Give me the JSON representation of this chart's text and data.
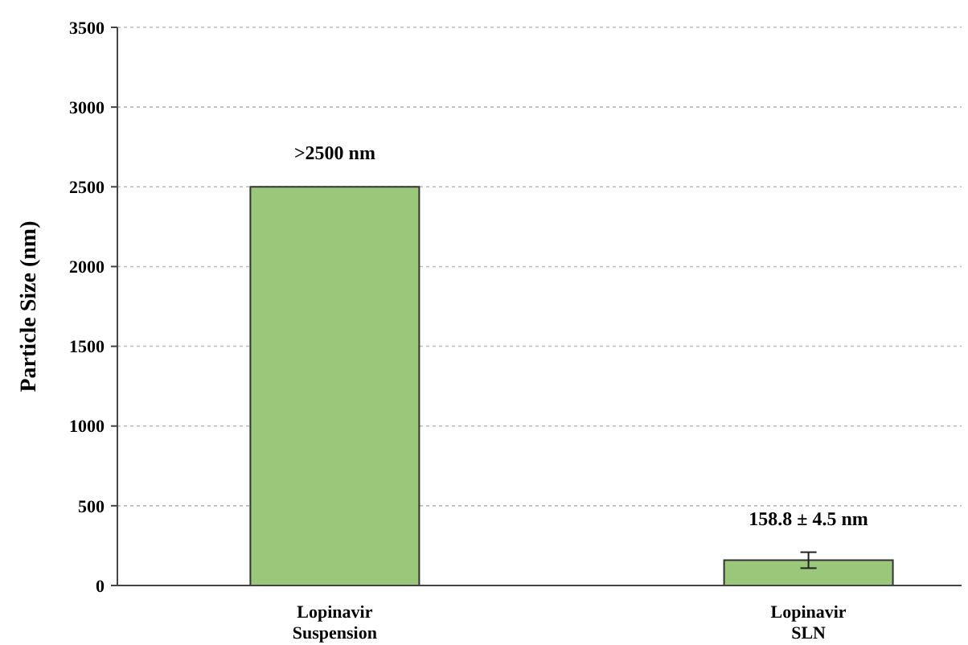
{
  "chart_data": {
    "type": "bar",
    "ylabel": "Particle Size (nm)",
    "categories": [
      "Lopinavir\nSuspension",
      "Lopinavir\nSLN"
    ],
    "values": [
      2500,
      158.8
    ],
    "errors": [
      null,
      50
    ],
    "value_labels": [
      ">2500 nm",
      "158.8 ± 4.5 nm"
    ],
    "color": "#9bc77a",
    "ylim": [
      0,
      3500
    ],
    "yticks": [
      0,
      500,
      1000,
      1500,
      2000,
      2500,
      3000,
      3500
    ],
    "grid": "y"
  }
}
